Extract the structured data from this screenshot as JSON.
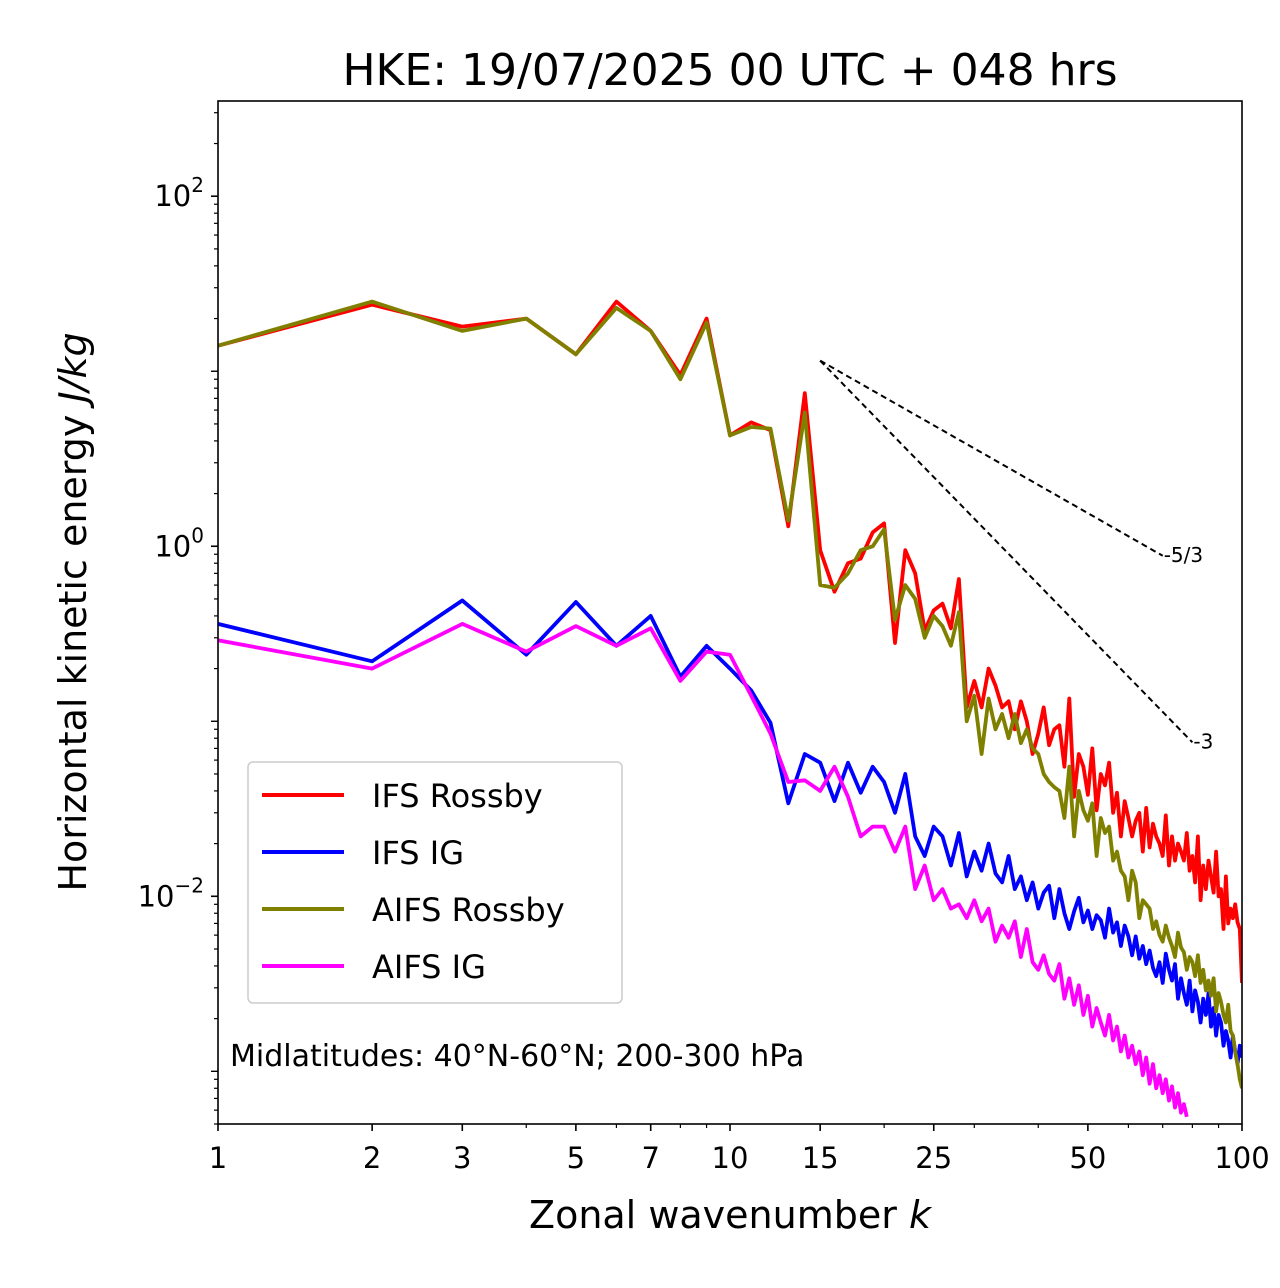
{
  "chart_data": {
    "type": "line",
    "title": "HKE: 19/07/2025 00 UTC + 048 hrs",
    "xlabel_main": "Zonal wavenumber ",
    "xlabel_italic": "k",
    "ylabel_main": "Horizontal kinetic energy ",
    "ylabel_italic": "J/kg",
    "xscale": "log",
    "yscale": "log",
    "xlim": [
      1,
      100
    ],
    "ylim": [
      0.0005,
      350
    ],
    "xticks": [
      {
        "value": 1,
        "label": "1"
      },
      {
        "value": 2,
        "label": "2"
      },
      {
        "value": 3,
        "label": "3"
      },
      {
        "value": 5,
        "label": "5"
      },
      {
        "value": 7,
        "label": "7"
      },
      {
        "value": 10,
        "label": "10"
      },
      {
        "value": 15,
        "label": "15"
      },
      {
        "value": 25,
        "label": "25"
      },
      {
        "value": 50,
        "label": "50"
      },
      {
        "value": 100,
        "label": "100"
      }
    ],
    "yticks": [
      {
        "value": 100,
        "base": "10",
        "exp": "2"
      },
      {
        "value": 1,
        "base": "10",
        "exp": "0"
      },
      {
        "value": 0.01,
        "base": "10",
        "exp": "−2"
      }
    ],
    "annotation": "Midlatitudes: 40°N-60°N; 200-300 hPa",
    "legend_position": "lower-left",
    "reference_lines": [
      {
        "label": "-5/3",
        "slope": -1.6667,
        "x_start": 15,
        "y_start": 11.5,
        "x_end": 70
      },
      {
        "label": "-3",
        "slope": -3,
        "x_start": 15,
        "y_start": 11.5,
        "x_end": 80
      }
    ],
    "series": [
      {
        "name": "IFS Rossby",
        "color": "#ff0000",
        "x": [
          1,
          2,
          3,
          4,
          5,
          6,
          7,
          8,
          9,
          10,
          11,
          12,
          13,
          14,
          15,
          16,
          17,
          18,
          19,
          20,
          21,
          22,
          23,
          24,
          25,
          26,
          27,
          28,
          29,
          30,
          31,
          32,
          33,
          34,
          35,
          36,
          37,
          38,
          39,
          40,
          41,
          42,
          43,
          44,
          45,
          46,
          47,
          48,
          49,
          50,
          51,
          52,
          53,
          54,
          55,
          56,
          57,
          58,
          59,
          60,
          61,
          62,
          63,
          64,
          65,
          66,
          67,
          68,
          69,
          70,
          71,
          72,
          73,
          74,
          75,
          76,
          77,
          78,
          79,
          80,
          81,
          82,
          83,
          84,
          85,
          86,
          87,
          88,
          89,
          90,
          91,
          92,
          93,
          94,
          95,
          96,
          97,
          98,
          99,
          100
        ],
        "values": [
          14,
          24,
          18,
          20,
          12.5,
          25,
          17,
          9.5,
          20,
          4.3,
          5.1,
          4.6,
          1.3,
          7.5,
          0.95,
          0.55,
          0.8,
          0.85,
          1.2,
          1.35,
          0.28,
          0.95,
          0.7,
          0.33,
          0.43,
          0.47,
          0.34,
          0.65,
          0.12,
          0.17,
          0.12,
          0.2,
          0.16,
          0.12,
          0.13,
          0.09,
          0.13,
          0.1,
          0.065,
          0.085,
          0.12,
          0.073,
          0.09,
          0.095,
          0.055,
          0.135,
          0.037,
          0.065,
          0.055,
          0.038,
          0.07,
          0.031,
          0.05,
          0.043,
          0.058,
          0.03,
          0.039,
          0.022,
          0.035,
          0.028,
          0.022,
          0.027,
          0.03,
          0.018,
          0.032,
          0.019,
          0.026,
          0.022,
          0.02,
          0.017,
          0.029,
          0.015,
          0.022,
          0.016,
          0.02,
          0.018,
          0.016,
          0.023,
          0.014,
          0.017,
          0.012,
          0.022,
          0.0095,
          0.015,
          0.011,
          0.016,
          0.013,
          0.0105,
          0.018,
          0.01,
          0.011,
          0.0065,
          0.013,
          0.007,
          0.0085,
          0.0075,
          0.009,
          0.0071,
          0.0065,
          0.0032
        ]
      },
      {
        "name": "IFS IG",
        "color": "#0000ff",
        "x": [
          1,
          2,
          3,
          4,
          5,
          6,
          7,
          8,
          9,
          10,
          11,
          12,
          13,
          14,
          15,
          16,
          17,
          18,
          19,
          20,
          21,
          22,
          23,
          24,
          25,
          26,
          27,
          28,
          29,
          30,
          31,
          32,
          33,
          34,
          35,
          36,
          37,
          38,
          39,
          40,
          41,
          42,
          43,
          44,
          45,
          46,
          47,
          48,
          49,
          50,
          51,
          52,
          53,
          54,
          55,
          56,
          57,
          58,
          59,
          60,
          61,
          62,
          63,
          64,
          65,
          66,
          67,
          68,
          69,
          70,
          71,
          72,
          73,
          74,
          75,
          76,
          77,
          78,
          79,
          80,
          81,
          82,
          83,
          84,
          85,
          86,
          87,
          88,
          89,
          90,
          91,
          92,
          93,
          94,
          95,
          96,
          97,
          98,
          99,
          100
        ],
        "values": [
          0.36,
          0.22,
          0.49,
          0.24,
          0.48,
          0.27,
          0.4,
          0.18,
          0.27,
          0.2,
          0.15,
          0.098,
          0.034,
          0.065,
          0.058,
          0.035,
          0.058,
          0.039,
          0.055,
          0.045,
          0.03,
          0.05,
          0.022,
          0.017,
          0.025,
          0.022,
          0.015,
          0.023,
          0.013,
          0.018,
          0.014,
          0.02,
          0.0135,
          0.012,
          0.017,
          0.011,
          0.013,
          0.0095,
          0.012,
          0.0085,
          0.0105,
          0.0115,
          0.0075,
          0.011,
          0.008,
          0.0065,
          0.0082,
          0.0098,
          0.0071,
          0.0083,
          0.0065,
          0.0078,
          0.0073,
          0.0058,
          0.0085,
          0.0062,
          0.0071,
          0.0052,
          0.0068,
          0.0059,
          0.0046,
          0.0059,
          0.0044,
          0.0052,
          0.0041,
          0.0049,
          0.0039,
          0.0035,
          0.0042,
          0.0032,
          0.0047,
          0.0038,
          0.0033,
          0.0041,
          0.0026,
          0.0034,
          0.0028,
          0.0024,
          0.0033,
          0.0022,
          0.0029,
          0.0025,
          0.0019,
          0.0026,
          0.0021,
          0.0028,
          0.0018,
          0.0023,
          0.0016,
          0.0021,
          0.0019,
          0.0014,
          0.0017,
          0.0015,
          0.0012,
          0.0016,
          0.0013,
          0.0011,
          0.0014,
          0.0012
        ]
      },
      {
        "name": "AIFS Rossby",
        "color": "#808000",
        "x": [
          1,
          2,
          3,
          4,
          5,
          6,
          7,
          8,
          9,
          10,
          11,
          12,
          13,
          14,
          15,
          16,
          17,
          18,
          19,
          20,
          21,
          22,
          23,
          24,
          25,
          26,
          27,
          28,
          29,
          30,
          31,
          32,
          33,
          34,
          35,
          36,
          37,
          38,
          39,
          40,
          41,
          42,
          43,
          44,
          45,
          46,
          47,
          48,
          49,
          50,
          51,
          52,
          53,
          54,
          55,
          56,
          57,
          58,
          59,
          60,
          61,
          62,
          63,
          64,
          65,
          66,
          67,
          68,
          69,
          70,
          71,
          72,
          73,
          74,
          75,
          76,
          77,
          78,
          79,
          80,
          81,
          82,
          83,
          84,
          85,
          86,
          87,
          88,
          89,
          90,
          91,
          92,
          93,
          94,
          95,
          96,
          97,
          98,
          99,
          100
        ],
        "values": [
          14,
          25,
          17,
          20,
          12.5,
          23,
          17,
          9,
          19,
          4.3,
          4.8,
          4.7,
          1.4,
          5.8,
          0.6,
          0.58,
          0.7,
          0.95,
          1.0,
          1.25,
          0.38,
          0.6,
          0.5,
          0.3,
          0.4,
          0.35,
          0.27,
          0.42,
          0.1,
          0.14,
          0.065,
          0.135,
          0.09,
          0.11,
          0.08,
          0.11,
          0.075,
          0.09,
          0.07,
          0.065,
          0.05,
          0.045,
          0.042,
          0.04,
          0.028,
          0.055,
          0.022,
          0.04,
          0.031,
          0.027,
          0.034,
          0.017,
          0.028,
          0.023,
          0.025,
          0.016,
          0.018,
          0.014,
          0.013,
          0.0095,
          0.014,
          0.012,
          0.0075,
          0.0095,
          0.009,
          0.0085,
          0.0065,
          0.0072,
          0.006,
          0.0055,
          0.0068,
          0.0058,
          0.0052,
          0.0045,
          0.0062,
          0.0051,
          0.0048,
          0.0038,
          0.0045,
          0.0042,
          0.0035,
          0.0046,
          0.0032,
          0.0038,
          0.0029,
          0.0033,
          0.0027,
          0.0034,
          0.0022,
          0.0028,
          0.0025,
          0.0021,
          0.0019,
          0.0024,
          0.0017,
          0.0016,
          0.0013,
          0.0011,
          0.0009,
          0.0008
        ]
      },
      {
        "name": "AIFS IG",
        "color": "#ff00ff",
        "x": [
          1,
          2,
          3,
          4,
          5,
          6,
          7,
          8,
          9,
          10,
          11,
          12,
          13,
          14,
          15,
          16,
          17,
          18,
          19,
          20,
          21,
          22,
          23,
          24,
          25,
          26,
          27,
          28,
          29,
          30,
          31,
          32,
          33,
          34,
          35,
          36,
          37,
          38,
          39,
          40,
          41,
          42,
          43,
          44,
          45,
          46,
          47,
          48,
          49,
          50,
          51,
          52,
          53,
          54,
          55,
          56,
          57,
          58,
          59,
          60,
          61,
          62,
          63,
          64,
          65,
          66,
          67,
          68,
          69,
          70,
          71,
          72,
          73,
          74,
          75,
          76,
          77,
          78
        ],
        "values": [
          0.29,
          0.2,
          0.36,
          0.25,
          0.35,
          0.27,
          0.34,
          0.17,
          0.25,
          0.24,
          0.14,
          0.085,
          0.045,
          0.046,
          0.04,
          0.055,
          0.037,
          0.022,
          0.025,
          0.025,
          0.018,
          0.025,
          0.011,
          0.015,
          0.0095,
          0.011,
          0.0085,
          0.009,
          0.0075,
          0.0095,
          0.0072,
          0.0085,
          0.0055,
          0.0068,
          0.0058,
          0.0072,
          0.0045,
          0.0065,
          0.0042,
          0.0038,
          0.0046,
          0.0036,
          0.0033,
          0.0041,
          0.0026,
          0.0034,
          0.0024,
          0.0031,
          0.0021,
          0.0027,
          0.0018,
          0.0023,
          0.0019,
          0.0016,
          0.0021,
          0.0015,
          0.0018,
          0.0013,
          0.0016,
          0.0012,
          0.0014,
          0.0011,
          0.0013,
          0.00095,
          0.0012,
          0.00085,
          0.0011,
          0.0008,
          0.00095,
          0.00075,
          0.0009,
          0.00068,
          0.00082,
          0.00062,
          0.00075,
          0.00058,
          0.00065,
          0.00055
        ]
      }
    ]
  }
}
